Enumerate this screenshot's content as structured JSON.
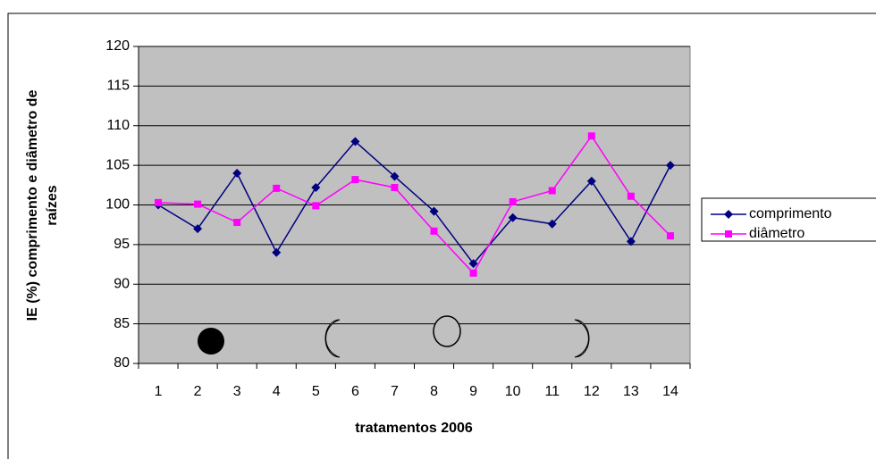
{
  "chart_data": {
    "type": "line",
    "x_label": "tratamentos 2006",
    "y_label": [
      "IE (%) comprimento e diâmetro de",
      "raízes"
    ],
    "categories": [
      "1",
      "2",
      "3",
      "4",
      "5",
      "6",
      "7",
      "8",
      "9",
      "10",
      "11",
      "12",
      "13",
      "14"
    ],
    "series": [
      {
        "name": "comprimento",
        "color": "#000080",
        "marker": "diamond",
        "values": [
          100,
          97,
          104,
          94,
          102.2,
          108,
          103.6,
          99.2,
          92.6,
          98.4,
          97.6,
          103,
          95.4,
          105
        ]
      },
      {
        "name": "diâmetro",
        "color": "#ff00ff",
        "marker": "square",
        "values": [
          100.3,
          100.1,
          97.8,
          102.1,
          99.9,
          103.2,
          102.2,
          96.7,
          91.4,
          100.4,
          101.8,
          108.7,
          101.1,
          96.1
        ]
      }
    ],
    "ylim": [
      80,
      120
    ],
    "yticks": [
      80,
      85,
      90,
      95,
      100,
      105,
      110,
      115,
      120
    ],
    "grid": true,
    "plot_background": "#c0c0c0",
    "legend": "right"
  }
}
